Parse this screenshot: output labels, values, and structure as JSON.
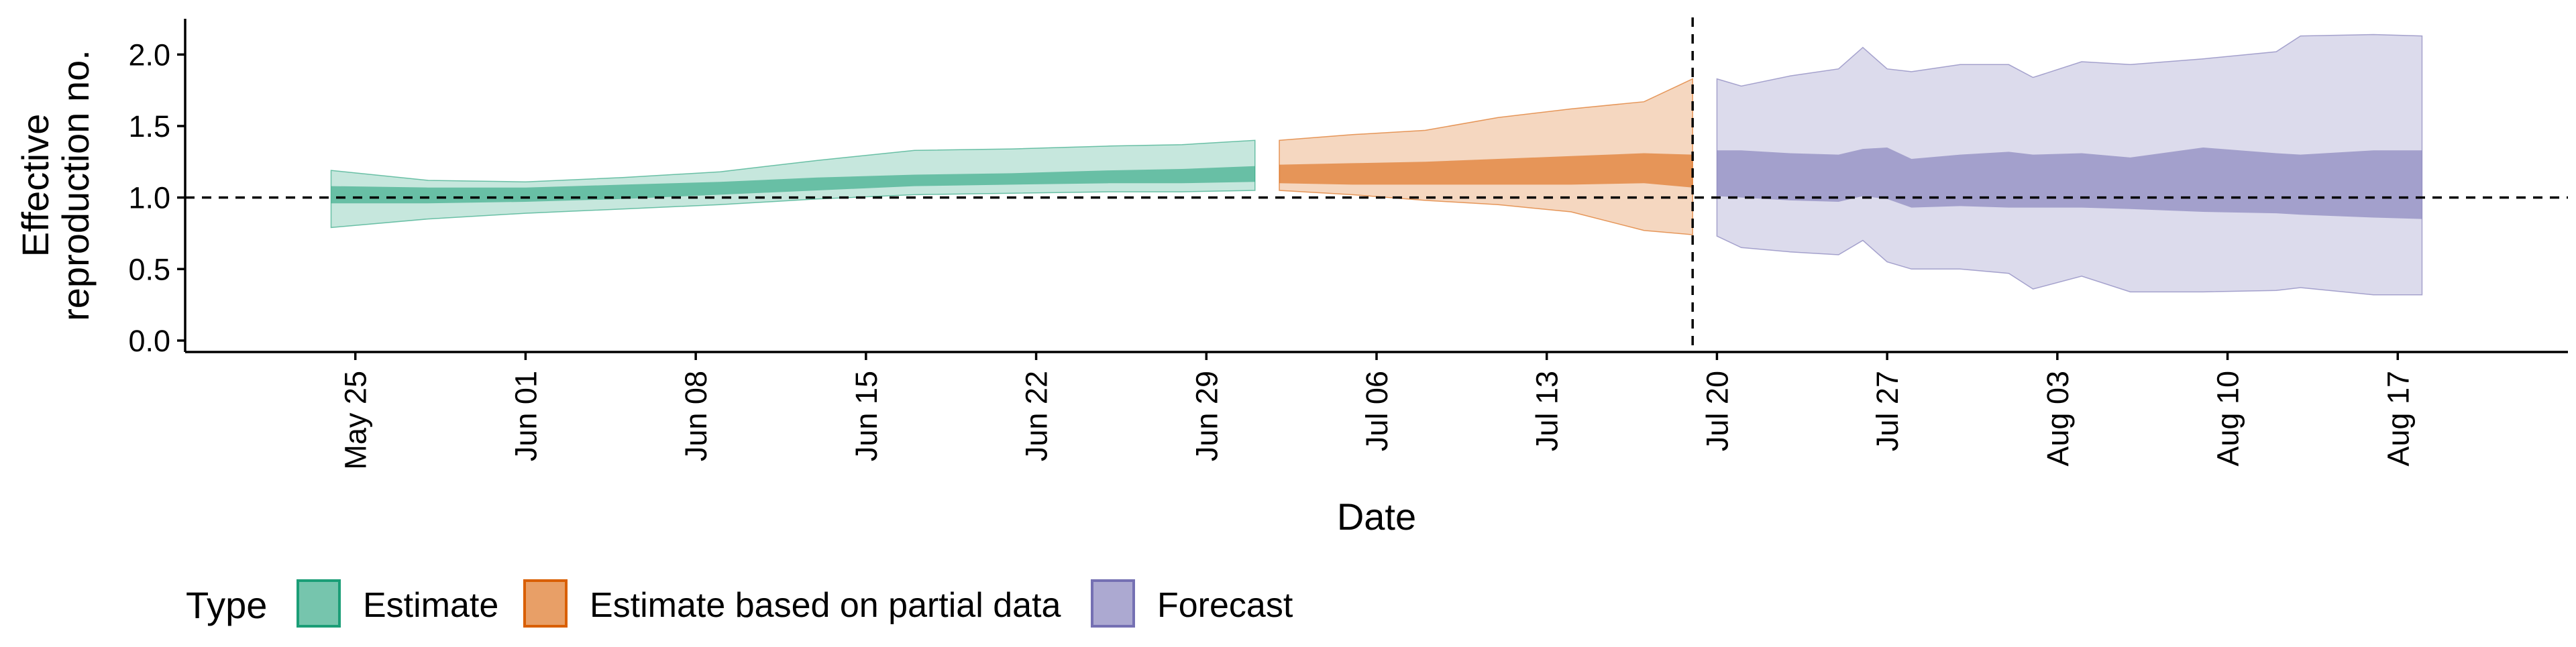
{
  "chart_data": {
    "type": "area",
    "xlabel": "Date",
    "ylabel": [
      "Effective",
      "reproduction no."
    ],
    "ylim": [
      -0.08,
      2.25
    ],
    "xlim": [
      "2020-05-18",
      "2020-08-24"
    ],
    "yticks": [
      0.0,
      0.5,
      1.0,
      1.5,
      2.0
    ],
    "ytick_labels": [
      "0.0",
      "0.5",
      "1.0",
      "1.5",
      "2.0"
    ],
    "xticks": [
      "2020-05-25",
      "2020-06-01",
      "2020-06-08",
      "2020-06-15",
      "2020-06-22",
      "2020-06-29",
      "2020-07-06",
      "2020-07-13",
      "2020-07-20",
      "2020-07-27",
      "2020-08-03",
      "2020-08-10",
      "2020-08-17"
    ],
    "xtick_labels": [
      "May 25",
      "Jun 01",
      "Jun 08",
      "Jun 15",
      "Jun 22",
      "Jun 29",
      "Jul 06",
      "Jul 13",
      "Jul 20",
      "Jul 27",
      "Aug 03",
      "Aug 10",
      "Aug 17"
    ],
    "reference_lines": {
      "y": 1.0,
      "x": "2020-07-19"
    },
    "grid": false,
    "legend": {
      "title": "Type",
      "position": "bottom-left",
      "items": [
        "Estimate",
        "Estimate based on partial data",
        "Forecast"
      ]
    },
    "series": [
      {
        "name": "Estimate",
        "color": "#1b9e77",
        "x": [
          "2020-05-24",
          "2020-05-28",
          "2020-06-01",
          "2020-06-05",
          "2020-06-09",
          "2020-06-13",
          "2020-06-17",
          "2020-06-21",
          "2020-06-25",
          "2020-06-28",
          "2020-07-01"
        ],
        "outer_upper": [
          1.19,
          1.12,
          1.11,
          1.14,
          1.18,
          1.26,
          1.33,
          1.34,
          1.36,
          1.37,
          1.4
        ],
        "outer_lower": [
          0.79,
          0.85,
          0.89,
          0.92,
          0.95,
          0.99,
          1.02,
          1.03,
          1.04,
          1.04,
          1.05
        ],
        "inner_upper": [
          1.08,
          1.07,
          1.07,
          1.09,
          1.11,
          1.14,
          1.16,
          1.17,
          1.19,
          1.2,
          1.22
        ],
        "inner_lower": [
          0.96,
          0.96,
          0.97,
          0.99,
          1.02,
          1.05,
          1.08,
          1.09,
          1.1,
          1.1,
          1.11
        ]
      },
      {
        "name": "Estimate based on partial data",
        "color": "#d95f02",
        "x": [
          "2020-07-02",
          "2020-07-05",
          "2020-07-08",
          "2020-07-11",
          "2020-07-14",
          "2020-07-17",
          "2020-07-19"
        ],
        "outer_upper": [
          1.4,
          1.44,
          1.47,
          1.56,
          1.62,
          1.67,
          1.83
        ],
        "outer_lower": [
          1.05,
          1.02,
          0.98,
          0.95,
          0.9,
          0.77,
          0.74
        ],
        "inner_upper": [
          1.23,
          1.24,
          1.25,
          1.27,
          1.29,
          1.31,
          1.3
        ],
        "inner_lower": [
          1.1,
          1.09,
          1.09,
          1.09,
          1.09,
          1.1,
          1.07
        ]
      },
      {
        "name": "Forecast",
        "color": "#7570b3",
        "x": [
          "2020-07-20",
          "2020-07-21",
          "2020-07-23",
          "2020-07-25",
          "2020-07-26",
          "2020-07-27",
          "2020-07-28",
          "2020-07-30",
          "2020-08-01",
          "2020-08-02",
          "2020-08-04",
          "2020-08-06",
          "2020-08-09",
          "2020-08-12",
          "2020-08-13",
          "2020-08-16",
          "2020-08-18"
        ],
        "outer_upper": [
          1.83,
          1.78,
          1.85,
          1.9,
          2.05,
          1.9,
          1.88,
          1.93,
          1.93,
          1.84,
          1.95,
          1.93,
          1.97,
          2.02,
          2.13,
          2.14,
          2.13
        ],
        "outer_lower": [
          0.73,
          0.65,
          0.62,
          0.6,
          0.7,
          0.55,
          0.5,
          0.5,
          0.47,
          0.36,
          0.45,
          0.34,
          0.34,
          0.35,
          0.37,
          0.32,
          0.32
        ],
        "inner_upper": [
          1.33,
          1.33,
          1.31,
          1.3,
          1.34,
          1.35,
          1.27,
          1.3,
          1.32,
          1.3,
          1.31,
          1.28,
          1.35,
          1.31,
          1.3,
          1.33,
          1.33
        ],
        "inner_lower": [
          1.01,
          1.0,
          0.98,
          0.97,
          1.01,
          0.99,
          0.93,
          0.94,
          0.93,
          0.93,
          0.93,
          0.92,
          0.9,
          0.89,
          0.88,
          0.86,
          0.85
        ]
      }
    ]
  }
}
